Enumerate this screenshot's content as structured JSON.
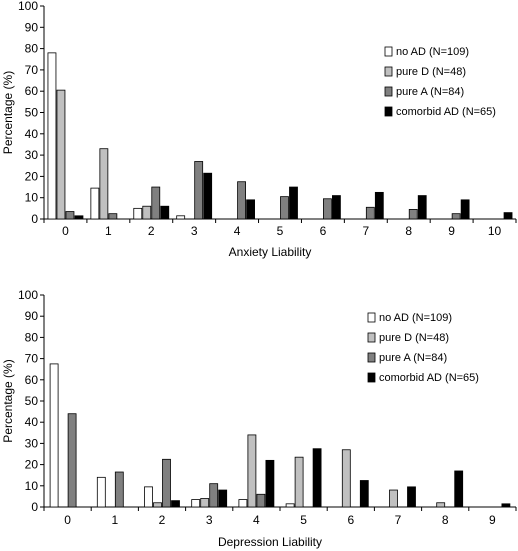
{
  "chart_data": [
    {
      "type": "bar",
      "xlabel": "Anxiety Liability",
      "ylabel": "Percentage (%)",
      "ylim": [
        0,
        100
      ],
      "yticks": [
        0,
        10,
        20,
        30,
        40,
        50,
        60,
        70,
        80,
        90,
        100
      ],
      "categories": [
        "0",
        "1",
        "2",
        "3",
        "4",
        "5",
        "6",
        "7",
        "8",
        "9",
        "10"
      ],
      "legend_position": "right",
      "series": [
        {
          "name": "no AD (N=109)",
          "color": "#ffffff",
          "values": [
            78,
            14.5,
            5,
            1.5,
            0,
            0,
            0,
            0,
            0,
            0,
            0
          ]
        },
        {
          "name": "pure D (N=48)",
          "color": "#c0c0c0",
          "values": [
            60.5,
            33,
            6,
            0,
            0,
            0,
            0,
            0,
            0,
            0,
            0
          ]
        },
        {
          "name": "pure A (N=84)",
          "color": "#808080",
          "values": [
            3.5,
            2.5,
            15,
            27,
            17.5,
            10.5,
            9.5,
            5.5,
            4.5,
            2.5,
            0
          ]
        },
        {
          "name": "comorbid AD (N=65)",
          "color": "#000000",
          "values": [
            1.5,
            0,
            6,
            21.5,
            9,
            15,
            11,
            12.5,
            11,
            9,
            3
          ]
        }
      ]
    },
    {
      "type": "bar",
      "xlabel": "Depression Liability",
      "ylabel": "Percentage (%)",
      "ylim": [
        0,
        100
      ],
      "yticks": [
        0,
        10,
        20,
        30,
        40,
        50,
        60,
        70,
        80,
        90,
        100
      ],
      "categories": [
        "0",
        "1",
        "2",
        "3",
        "4",
        "5",
        "6",
        "7",
        "8",
        "9"
      ],
      "legend_position": "right",
      "series": [
        {
          "name": "no AD (N=109)",
          "color": "#ffffff",
          "values": [
            67.5,
            14,
            9.5,
            3.5,
            3.5,
            1.5,
            0,
            0,
            0,
            0
          ]
        },
        {
          "name": "pure D (N=48)",
          "color": "#c0c0c0",
          "values": [
            0,
            0,
            2,
            4,
            34,
            23.5,
            27,
            8,
            2,
            0
          ]
        },
        {
          "name": "pure A (N=84)",
          "color": "#808080",
          "values": [
            44,
            16.5,
            22.5,
            11,
            6,
            0,
            0,
            0,
            0,
            0
          ]
        },
        {
          "name": "comorbid AD (N=65)",
          "color": "#000000",
          "values": [
            0,
            0,
            3,
            8,
            22,
            27.5,
            12.5,
            9.5,
            17,
            1.5
          ]
        }
      ]
    }
  ]
}
